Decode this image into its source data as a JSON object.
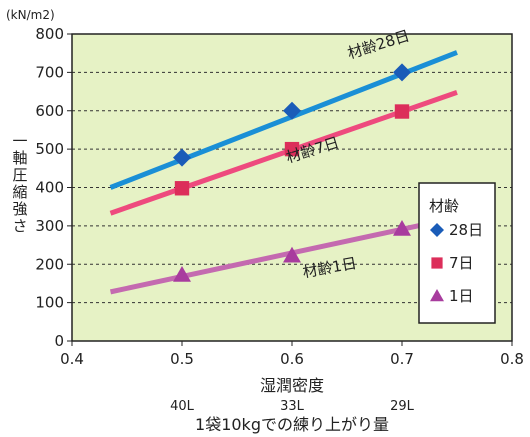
{
  "chart_data": {
    "type": "line",
    "unit_label": "(kN/m2)",
    "ylabel": "一軸圧縮強さ",
    "xlabel": "湿潤密度",
    "secondary_xlabel": "1袋10kgでの練り上がり量",
    "secondary_ticks": [
      {
        "x": 0.5,
        "label": "40L"
      },
      {
        "x": 0.6,
        "label": "33L"
      },
      {
        "x": 0.7,
        "label": "29L"
      }
    ],
    "xlim": [
      0.4,
      0.8
    ],
    "ylim": [
      0,
      800
    ],
    "xticks": [
      0.4,
      0.5,
      0.6,
      0.7,
      0.8
    ],
    "xtick_labels": [
      "0.4",
      "0.5",
      "0.6",
      "0.7",
      "0.8"
    ],
    "yticks": [
      0,
      100,
      200,
      300,
      400,
      500,
      600,
      700,
      800
    ],
    "grid": "horizontal dashed",
    "legend_title": "材齢",
    "legend_position": "right",
    "series": [
      {
        "name": "28日",
        "color": "#1a8fd6",
        "marker": "diamond",
        "marker_color": "#1a5cb8",
        "line": [
          [
            0.435,
            400
          ],
          [
            0.75,
            752
          ]
        ],
        "points": [
          [
            0.5,
            478
          ],
          [
            0.6,
            600
          ],
          [
            0.7,
            700
          ]
        ],
        "annotation": "材齢28日"
      },
      {
        "name": "7日",
        "color": "#ee4a7e",
        "marker": "square",
        "marker_color": "#dc2e5a",
        "line": [
          [
            0.435,
            333
          ],
          [
            0.75,
            648
          ]
        ],
        "points": [
          [
            0.5,
            398
          ],
          [
            0.6,
            500
          ],
          [
            0.7,
            598
          ]
        ],
        "annotation": "材齢7日"
      },
      {
        "name": "1日",
        "color": "#c46ab0",
        "marker": "triangle",
        "marker_color": "#a83c9e",
        "line": [
          [
            0.435,
            128
          ],
          [
            0.75,
            322
          ]
        ],
        "points": [
          [
            0.5,
            172
          ],
          [
            0.6,
            222
          ],
          [
            0.7,
            292
          ]
        ],
        "annotation": "材齢1日"
      }
    ]
  }
}
